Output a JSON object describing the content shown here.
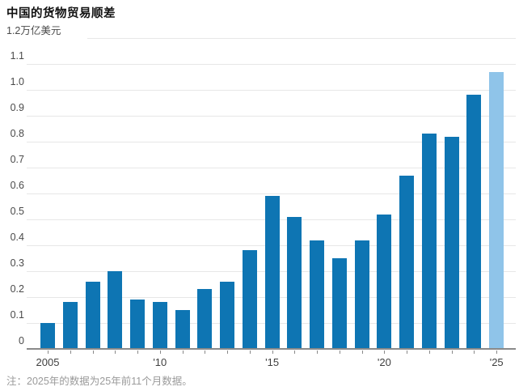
{
  "page": {
    "background": "#ffffff"
  },
  "header": {
    "title": "中国的货物贸易顺差"
  },
  "axis": {
    "top_value_label": "1.2",
    "unit": "万亿美元"
  },
  "chart_data": {
    "type": "bar",
    "title": "中国的货物贸易顺差",
    "ylabel": "万亿美元",
    "xlabel": "",
    "ylim": [
      0,
      1.2
    ],
    "ytick_step": 0.1,
    "ytick_labels": [
      "0",
      "0.1",
      "0.2",
      "0.3",
      "0.4",
      "0.5",
      "0.6",
      "0.7",
      "0.8",
      "0.9",
      "1.0",
      "1.1",
      "1.2"
    ],
    "grid": "horizontal",
    "legend": "none",
    "categories": [
      2005,
      2006,
      2007,
      2008,
      2009,
      2010,
      2011,
      2012,
      2013,
      2014,
      2015,
      2016,
      2017,
      2018,
      2019,
      2020,
      2021,
      2022,
      2023,
      2024,
      2025
    ],
    "values": [
      0.1,
      0.18,
      0.26,
      0.3,
      0.19,
      0.18,
      0.15,
      0.23,
      0.26,
      0.38,
      0.59,
      0.51,
      0.42,
      0.35,
      0.42,
      0.52,
      0.67,
      0.83,
      0.82,
      0.98,
      1.07
    ],
    "xticks": [
      {
        "year": 2005,
        "label": "2005"
      },
      {
        "year": 2010,
        "label": "'10"
      },
      {
        "year": 2015,
        "label": "'15"
      },
      {
        "year": 2020,
        "label": "'20"
      },
      {
        "year": 2025,
        "label": "'25"
      }
    ],
    "colors": {
      "bar": "#0e75b3",
      "highlight": "#8fc4e9",
      "gridline": "#e7e7e7",
      "axis": "#8a8a8a"
    },
    "highlight_index": 20
  },
  "footnote": {
    "text": "注：2025年的数据为25年前11个月数据。"
  }
}
